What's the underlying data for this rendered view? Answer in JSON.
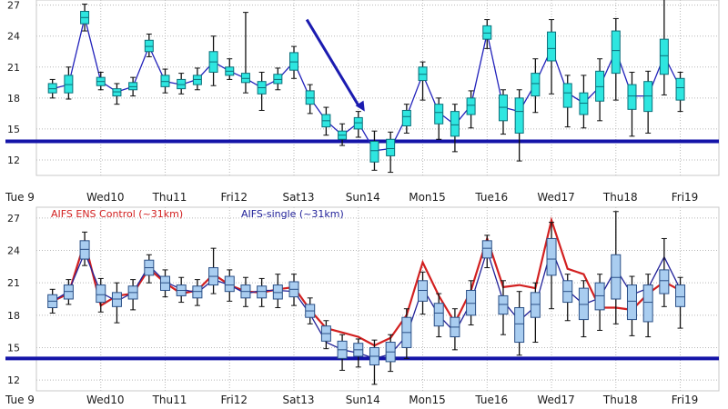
{
  "colors": {
    "bg": "#ffffff",
    "grid": "#b8b8b8",
    "threshold": "#1414a8",
    "top_box_fill": "#2ee6e0",
    "top_box_edge": "#0b6f7a",
    "top_line": "#2222bb",
    "bottom_box_fill": "#a9cdf0",
    "bottom_box_edge": "#2a4f86",
    "single_line": "#222299",
    "ens_line": "#d22020",
    "whisker": "#111111",
    "arrow": "#1b1bb0",
    "weekend_label": "#cc1111"
  },
  "chart_data": [
    {
      "type": "box",
      "name": "top-panel",
      "ylim": [
        10.5,
        27.5
      ],
      "yticks": [
        12,
        15,
        18,
        21,
        24,
        27
      ],
      "xlim": [
        0,
        10.6
      ],
      "day_labels": [
        "Tue 9",
        "Wed10",
        "Thu11",
        "Fri12",
        "Sat13",
        "Sun14",
        "Mon15",
        "Tue16",
        "Wed17",
        "Thu18",
        "Fri19"
      ],
      "weekend_index": 5,
      "threshold": 13.8,
      "annotation": {
        "type": "arrow",
        "from": [
          4.2,
          25.6
        ],
        "to": [
          5.1,
          16.7
        ]
      },
      "boxes": [
        {
          "t": 0.25,
          "q1": 18.5,
          "q3": 19.4,
          "lo": 18.0,
          "hi": 19.8,
          "med": 18.9
        },
        {
          "t": 0.5,
          "q1": 18.5,
          "q3": 20.2,
          "lo": 17.9,
          "hi": 21.0,
          "med": 19.3
        },
        {
          "t": 0.75,
          "q1": 25.2,
          "q3": 26.4,
          "lo": 24.5,
          "hi": 27.1,
          "med": 25.8
        },
        {
          "t": 1.0,
          "q1": 19.2,
          "q3": 20.0,
          "lo": 18.8,
          "hi": 20.5,
          "med": 19.6
        },
        {
          "t": 1.25,
          "q1": 18.2,
          "q3": 18.9,
          "lo": 17.4,
          "hi": 19.4,
          "med": 18.6
        },
        {
          "t": 1.5,
          "q1": 18.8,
          "q3": 19.5,
          "lo": 18.2,
          "hi": 20.0,
          "med": 19.1
        },
        {
          "t": 1.75,
          "q1": 22.5,
          "q3": 23.6,
          "lo": 22.0,
          "hi": 24.2,
          "med": 23.0
        },
        {
          "t": 2.0,
          "q1": 19.1,
          "q3": 20.2,
          "lo": 18.5,
          "hi": 20.8,
          "med": 19.6
        },
        {
          "t": 2.25,
          "q1": 18.9,
          "q3": 19.8,
          "lo": 18.4,
          "hi": 20.4,
          "med": 19.3
        },
        {
          "t": 2.5,
          "q1": 19.3,
          "q3": 20.2,
          "lo": 18.8,
          "hi": 20.9,
          "med": 19.8
        },
        {
          "t": 2.75,
          "q1": 20.5,
          "q3": 22.5,
          "lo": 19.2,
          "hi": 24.0,
          "med": 21.5
        },
        {
          "t": 3.0,
          "q1": 20.2,
          "q3": 21.0,
          "lo": 19.8,
          "hi": 21.8,
          "med": 20.6
        },
        {
          "t": 3.25,
          "q1": 19.5,
          "q3": 20.4,
          "lo": 18.5,
          "hi": 26.3,
          "med": 19.9
        },
        {
          "t": 3.5,
          "q1": 18.4,
          "q3": 19.6,
          "lo": 16.8,
          "hi": 20.5,
          "med": 19.0
        },
        {
          "t": 3.75,
          "q1": 19.4,
          "q3": 20.3,
          "lo": 18.8,
          "hi": 20.9,
          "med": 19.8
        },
        {
          "t": 4.0,
          "q1": 20.7,
          "q3": 22.4,
          "lo": 19.9,
          "hi": 23.0,
          "med": 21.5
        },
        {
          "t": 4.25,
          "q1": 17.4,
          "q3": 18.7,
          "lo": 16.5,
          "hi": 19.3,
          "med": 18.0
        },
        {
          "t": 4.5,
          "q1": 15.2,
          "q3": 16.4,
          "lo": 14.4,
          "hi": 17.1,
          "med": 15.8
        },
        {
          "t": 4.75,
          "q1": 14.0,
          "q3": 14.8,
          "lo": 13.4,
          "hi": 15.5,
          "med": 14.4
        },
        {
          "t": 5.0,
          "q1": 15.0,
          "q3": 16.1,
          "lo": 14.2,
          "hi": 16.7,
          "med": 15.6
        },
        {
          "t": 5.25,
          "q1": 11.8,
          "q3": 13.8,
          "lo": 11.0,
          "hi": 14.8,
          "med": 12.9
        },
        {
          "t": 5.5,
          "q1": 12.4,
          "q3": 14.0,
          "lo": 10.8,
          "hi": 14.7,
          "med": 13.1
        },
        {
          "t": 5.75,
          "q1": 15.3,
          "q3": 16.8,
          "lo": 14.6,
          "hi": 17.4,
          "med": 16.2
        },
        {
          "t": 6.0,
          "q1": 19.7,
          "q3": 21.0,
          "lo": 17.8,
          "hi": 21.5,
          "med": 20.3
        },
        {
          "t": 6.25,
          "q1": 15.5,
          "q3": 17.4,
          "lo": 14.0,
          "hi": 18.0,
          "med": 16.6
        },
        {
          "t": 6.5,
          "q1": 14.3,
          "q3": 16.7,
          "lo": 12.8,
          "hi": 17.4,
          "med": 15.4
        },
        {
          "t": 6.75,
          "q1": 16.4,
          "q3": 18.0,
          "lo": 15.1,
          "hi": 18.7,
          "med": 17.3
        },
        {
          "t": 7.0,
          "q1": 23.7,
          "q3": 25.0,
          "lo": 22.8,
          "hi": 25.6,
          "med": 24.3
        },
        {
          "t": 7.25,
          "q1": 15.8,
          "q3": 18.3,
          "lo": 14.5,
          "hi": 18.8,
          "med": 17.1
        },
        {
          "t": 7.5,
          "q1": 14.6,
          "q3": 18.0,
          "lo": 11.9,
          "hi": 18.8,
          "med": 16.7
        },
        {
          "t": 7.75,
          "q1": 18.2,
          "q3": 20.4,
          "lo": 16.6,
          "hi": 21.8,
          "med": 19.4
        },
        {
          "t": 8.0,
          "q1": 21.6,
          "q3": 24.4,
          "lo": 18.4,
          "hi": 25.6,
          "med": 22.8
        },
        {
          "t": 8.25,
          "q1": 17.1,
          "q3": 19.4,
          "lo": 15.2,
          "hi": 20.2,
          "med": 18.5
        },
        {
          "t": 8.5,
          "q1": 16.4,
          "q3": 18.5,
          "lo": 15.1,
          "hi": 20.2,
          "med": 17.5
        },
        {
          "t": 8.75,
          "q1": 17.7,
          "q3": 20.6,
          "lo": 15.8,
          "hi": 21.8,
          "med": 19.1
        },
        {
          "t": 9.0,
          "q1": 20.4,
          "q3": 24.5,
          "lo": 17.8,
          "hi": 25.7,
          "med": 22.6
        },
        {
          "t": 9.25,
          "q1": 16.9,
          "q3": 19.3,
          "lo": 14.3,
          "hi": 20.5,
          "med": 18.2
        },
        {
          "t": 9.5,
          "q1": 16.7,
          "q3": 19.6,
          "lo": 14.6,
          "hi": 20.6,
          "med": 18.2
        },
        {
          "t": 9.75,
          "q1": 20.3,
          "q3": 23.7,
          "lo": 18.3,
          "hi": 27.8,
          "med": 22.1
        },
        {
          "t": 10.0,
          "q1": 17.8,
          "q3": 19.9,
          "lo": 16.7,
          "hi": 20.5,
          "med": 19.0
        }
      ]
    },
    {
      "type": "box",
      "name": "bottom-panel",
      "ylim": [
        11.0,
        28.0
      ],
      "yticks": [
        12,
        15,
        18,
        21,
        24,
        27
      ],
      "xlim": [
        0,
        10.6
      ],
      "day_labels": [
        "Tue 9",
        "Wed10",
        "Thu11",
        "Fri12",
        "Sat13",
        "Sun14",
        "Mon15",
        "Tue16",
        "Wed17",
        "Thu18",
        "Fri19"
      ],
      "weekend_index": 5,
      "threshold": 14.0,
      "legend": [
        {
          "label": "AIFS ENS Control (~31km)",
          "color": "#d22020"
        },
        {
          "label": "AIFS-single (~31km)",
          "color": "#222299"
        }
      ],
      "boxes": [
        {
          "t": 0.25,
          "q1": 18.7,
          "q3": 19.9,
          "lo": 18.2,
          "hi": 20.4,
          "med": 19.3
        },
        {
          "t": 0.5,
          "q1": 19.5,
          "q3": 20.8,
          "lo": 19.0,
          "hi": 21.3,
          "med": 20.2
        },
        {
          "t": 0.75,
          "q1": 23.2,
          "q3": 24.9,
          "lo": 22.6,
          "hi": 25.7,
          "med": 24.1
        },
        {
          "t": 1.0,
          "q1": 19.2,
          "q3": 20.8,
          "lo": 18.3,
          "hi": 21.4,
          "med": 19.9
        },
        {
          "t": 1.25,
          "q1": 18.8,
          "q3": 20.1,
          "lo": 17.3,
          "hi": 21.0,
          "med": 19.5
        },
        {
          "t": 1.5,
          "q1": 19.5,
          "q3": 20.7,
          "lo": 18.5,
          "hi": 21.3,
          "med": 20.1
        },
        {
          "t": 1.75,
          "q1": 21.7,
          "q3": 23.1,
          "lo": 21.0,
          "hi": 23.6,
          "med": 22.4
        },
        {
          "t": 2.0,
          "q1": 20.3,
          "q3": 21.6,
          "lo": 19.7,
          "hi": 22.2,
          "med": 21.0
        },
        {
          "t": 2.25,
          "q1": 19.8,
          "q3": 20.8,
          "lo": 19.2,
          "hi": 21.5,
          "med": 20.3
        },
        {
          "t": 2.5,
          "q1": 19.6,
          "q3": 20.7,
          "lo": 18.9,
          "hi": 21.3,
          "med": 20.2
        },
        {
          "t": 2.75,
          "q1": 20.8,
          "q3": 22.4,
          "lo": 20.0,
          "hi": 24.2,
          "med": 21.6
        },
        {
          "t": 3.0,
          "q1": 20.2,
          "q3": 21.6,
          "lo": 19.3,
          "hi": 22.2,
          "med": 20.8
        },
        {
          "t": 3.25,
          "q1": 19.6,
          "q3": 20.8,
          "lo": 18.8,
          "hi": 21.5,
          "med": 20.2
        },
        {
          "t": 3.5,
          "q1": 19.6,
          "q3": 20.7,
          "lo": 18.8,
          "hi": 21.4,
          "med": 20.2
        },
        {
          "t": 3.75,
          "q1": 19.5,
          "q3": 20.8,
          "lo": 18.7,
          "hi": 21.8,
          "med": 20.1
        },
        {
          "t": 4.0,
          "q1": 19.7,
          "q3": 21.1,
          "lo": 18.9,
          "hi": 21.8,
          "med": 20.4
        },
        {
          "t": 4.25,
          "q1": 17.8,
          "q3": 19.0,
          "lo": 17.2,
          "hi": 19.6,
          "med": 18.4
        },
        {
          "t": 4.5,
          "q1": 15.6,
          "q3": 17.0,
          "lo": 14.9,
          "hi": 17.5,
          "med": 16.3
        },
        {
          "t": 4.75,
          "q1": 14.0,
          "q3": 15.6,
          "lo": 12.9,
          "hi": 16.2,
          "med": 14.8
        },
        {
          "t": 5.0,
          "q1": 14.2,
          "q3": 15.4,
          "lo": 13.2,
          "hi": 15.8,
          "med": 14.8
        },
        {
          "t": 5.25,
          "q1": 13.4,
          "q3": 15.0,
          "lo": 11.6,
          "hi": 15.7,
          "med": 14.2
        },
        {
          "t": 5.5,
          "q1": 13.7,
          "q3": 15.5,
          "lo": 12.8,
          "hi": 16.2,
          "med": 14.6
        },
        {
          "t": 5.75,
          "q1": 15.0,
          "q3": 17.8,
          "lo": 14.0,
          "hi": 18.6,
          "med": 16.4
        },
        {
          "t": 6.0,
          "q1": 19.3,
          "q3": 21.2,
          "lo": 18.1,
          "hi": 22.0,
          "med": 20.3
        },
        {
          "t": 6.25,
          "q1": 17.0,
          "q3": 19.1,
          "lo": 16.0,
          "hi": 20.0,
          "med": 18.2
        },
        {
          "t": 6.5,
          "q1": 16.0,
          "q3": 17.8,
          "lo": 14.8,
          "hi": 18.6,
          "med": 16.9
        },
        {
          "t": 6.75,
          "q1": 18.0,
          "q3": 20.3,
          "lo": 17.1,
          "hi": 21.2,
          "med": 19.1
        },
        {
          "t": 7.0,
          "q1": 23.3,
          "q3": 24.9,
          "lo": 22.4,
          "hi": 25.4,
          "med": 24.2
        },
        {
          "t": 7.25,
          "q1": 18.1,
          "q3": 19.8,
          "lo": 16.2,
          "hi": 21.2,
          "med": 19.0
        },
        {
          "t": 7.5,
          "q1": 15.5,
          "q3": 18.7,
          "lo": 14.3,
          "hi": 20.2,
          "med": 17.2
        },
        {
          "t": 7.75,
          "q1": 17.8,
          "q3": 20.1,
          "lo": 15.5,
          "hi": 21.0,
          "med": 19.0
        },
        {
          "t": 8.0,
          "q1": 21.7,
          "q3": 25.1,
          "lo": 18.6,
          "hi": 26.6,
          "med": 23.2
        },
        {
          "t": 8.25,
          "q1": 19.2,
          "q3": 21.2,
          "lo": 17.5,
          "hi": 21.8,
          "med": 20.2
        },
        {
          "t": 8.5,
          "q1": 17.6,
          "q3": 20.5,
          "lo": 16.0,
          "hi": 21.2,
          "med": 19.0
        },
        {
          "t": 8.75,
          "q1": 18.5,
          "q3": 21.0,
          "lo": 16.6,
          "hi": 21.8,
          "med": 19.8
        },
        {
          "t": 9.0,
          "q1": 19.5,
          "q3": 23.6,
          "lo": 17.2,
          "hi": 27.6,
          "med": 21.5
        },
        {
          "t": 9.25,
          "q1": 17.6,
          "q3": 20.8,
          "lo": 16.1,
          "hi": 21.6,
          "med": 19.3
        },
        {
          "t": 9.5,
          "q1": 17.4,
          "q3": 20.8,
          "lo": 16.0,
          "hi": 21.8,
          "med": 19.2
        },
        {
          "t": 9.75,
          "q1": 20.0,
          "q3": 22.2,
          "lo": 18.8,
          "hi": 25.1,
          "med": 21.2
        },
        {
          "t": 10.0,
          "q1": 18.8,
          "q3": 20.8,
          "lo": 16.8,
          "hi": 21.5,
          "med": 19.7
        }
      ],
      "ens_control_line": [
        {
          "t": 0.25,
          "v": 19.3
        },
        {
          "t": 0.5,
          "v": 20.0
        },
        {
          "t": 0.75,
          "v": 24.8
        },
        {
          "t": 1.0,
          "v": 18.9
        },
        {
          "t": 1.25,
          "v": 19.8
        },
        {
          "t": 1.5,
          "v": 20.0
        },
        {
          "t": 1.75,
          "v": 22.3
        },
        {
          "t": 2.0,
          "v": 21.0
        },
        {
          "t": 2.25,
          "v": 20.0
        },
        {
          "t": 2.5,
          "v": 20.3
        },
        {
          "t": 2.75,
          "v": 21.8
        },
        {
          "t": 3.0,
          "v": 20.8
        },
        {
          "t": 3.25,
          "v": 20.2
        },
        {
          "t": 3.5,
          "v": 20.1
        },
        {
          "t": 3.75,
          "v": 20.4
        },
        {
          "t": 4.0,
          "v": 20.6
        },
        {
          "t": 4.25,
          "v": 18.5
        },
        {
          "t": 4.5,
          "v": 16.8
        },
        {
          "t": 4.75,
          "v": 16.4
        },
        {
          "t": 5.0,
          "v": 16.0
        },
        {
          "t": 5.25,
          "v": 15.2
        },
        {
          "t": 5.5,
          "v": 15.9
        },
        {
          "t": 5.75,
          "v": 18.0
        },
        {
          "t": 6.0,
          "v": 22.9
        },
        {
          "t": 6.25,
          "v": 19.8
        },
        {
          "t": 6.5,
          "v": 17.3
        },
        {
          "t": 6.75,
          "v": 20.3
        },
        {
          "t": 7.0,
          "v": 25.1
        },
        {
          "t": 7.25,
          "v": 20.6
        },
        {
          "t": 7.5,
          "v": 20.8
        },
        {
          "t": 7.75,
          "v": 20.5
        },
        {
          "t": 8.0,
          "v": 26.8
        },
        {
          "t": 8.25,
          "v": 22.3
        },
        {
          "t": 8.5,
          "v": 21.8
        },
        {
          "t": 8.75,
          "v": 18.7
        },
        {
          "t": 9.0,
          "v": 18.7
        },
        {
          "t": 9.25,
          "v": 18.5
        },
        {
          "t": 9.5,
          "v": 20.0
        },
        {
          "t": 9.75,
          "v": 21.1
        },
        {
          "t": 10.0,
          "v": 20.3
        }
      ],
      "single_line": [
        {
          "t": 0.25,
          "v": 19.3
        },
        {
          "t": 0.5,
          "v": 20.2
        },
        {
          "t": 0.75,
          "v": 23.8
        },
        {
          "t": 1.0,
          "v": 20.1
        },
        {
          "t": 1.25,
          "v": 19.3
        },
        {
          "t": 1.5,
          "v": 20.1
        },
        {
          "t": 1.75,
          "v": 22.6
        },
        {
          "t": 2.0,
          "v": 21.1
        },
        {
          "t": 2.25,
          "v": 20.4
        },
        {
          "t": 2.5,
          "v": 20.1
        },
        {
          "t": 2.75,
          "v": 21.3
        },
        {
          "t": 3.0,
          "v": 20.8
        },
        {
          "t": 3.25,
          "v": 20.0
        },
        {
          "t": 3.5,
          "v": 20.3
        },
        {
          "t": 3.75,
          "v": 20.3
        },
        {
          "t": 4.0,
          "v": 20.2
        },
        {
          "t": 4.25,
          "v": 18.1
        },
        {
          "t": 4.5,
          "v": 15.5
        },
        {
          "t": 4.75,
          "v": 14.8
        },
        {
          "t": 5.0,
          "v": 14.5
        },
        {
          "t": 5.25,
          "v": 14.0
        },
        {
          "t": 5.5,
          "v": 14.4
        },
        {
          "t": 5.75,
          "v": 16.1
        },
        {
          "t": 6.0,
          "v": 20.5
        },
        {
          "t": 6.25,
          "v": 18.0
        },
        {
          "t": 6.5,
          "v": 16.4
        },
        {
          "t": 6.75,
          "v": 19.2
        },
        {
          "t": 7.0,
          "v": 24.0
        },
        {
          "t": 7.25,
          "v": 19.3
        },
        {
          "t": 7.5,
          "v": 17.5
        },
        {
          "t": 7.75,
          "v": 18.8
        },
        {
          "t": 8.0,
          "v": 24.2
        },
        {
          "t": 8.25,
          "v": 20.3
        },
        {
          "t": 8.5,
          "v": 19.0
        },
        {
          "t": 8.75,
          "v": 19.6
        },
        {
          "t": 9.0,
          "v": 22.3
        },
        {
          "t": 9.25,
          "v": 19.9
        },
        {
          "t": 9.5,
          "v": 20.5
        },
        {
          "t": 9.75,
          "v": 23.4
        },
        {
          "t": 10.0,
          "v": 20.4
        }
      ]
    }
  ]
}
